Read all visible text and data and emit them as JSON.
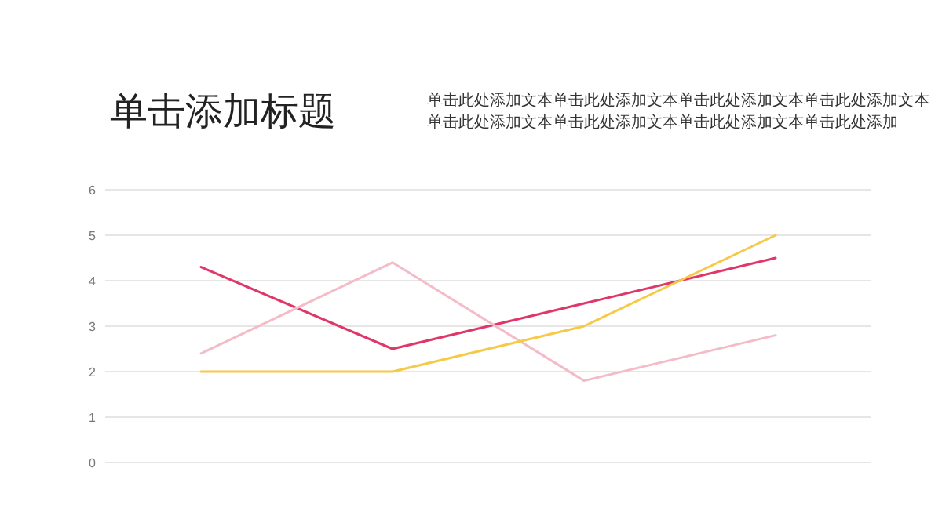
{
  "chart_data": {
    "type": "line",
    "title": "单击添加标题",
    "subtitle": "单击此处添加文本单击此处添加文本单击此处添加文本单击此处添加文本单击此处添加文本单击此处添加文本单击此处添加文本单击此处添加",
    "categories": [
      null,
      null,
      null,
      null
    ],
    "series": [
      {
        "color": "#e0376a",
        "values": [
          4.3,
          2.5,
          3.5,
          4.5
        ]
      },
      {
        "color": "#f3bcc8",
        "values": [
          2.4,
          4.4,
          1.8,
          2.8
        ]
      },
      {
        "color": "#f7c948",
        "values": [
          2,
          2,
          3,
          5
        ]
      }
    ],
    "ylim": [
      0,
      6
    ],
    "yticks": [
      0,
      1,
      2,
      3,
      4,
      5,
      6
    ],
    "grid": "y",
    "marker": "none",
    "line_style": "solid"
  }
}
